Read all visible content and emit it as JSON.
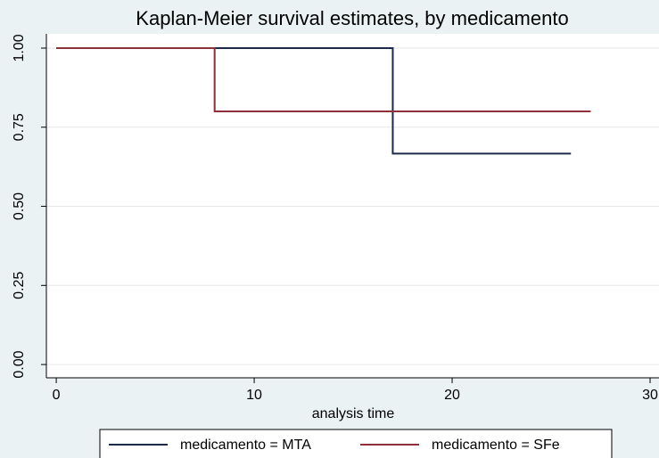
{
  "chart_data": {
    "type": "line",
    "step": "post",
    "title": "Kaplan-Meier survival estimates, by medicamento",
    "x_label": "analysis time",
    "series": [
      {
        "name": "medicamento = MTA",
        "color": "#1b2a48",
        "x": [
          0,
          17,
          26
        ],
        "values": [
          1,
          0.6667,
          0.6667
        ]
      },
      {
        "name": "medicamento = SFe",
        "color": "#8e2f3a",
        "x": [
          0,
          8,
          27
        ],
        "values": [
          1,
          0.8,
          0.8
        ]
      }
    ],
    "xlim": [
      -0.5,
      30.45
    ],
    "xticks": [
      0,
      10,
      20,
      30
    ],
    "ylim": [
      -0.042,
      1.045
    ],
    "yticks": [
      {
        "value": 0,
        "label": "0.00"
      },
      {
        "value": 0.25,
        "label": "0.25"
      },
      {
        "value": 0.5,
        "label": "0.50"
      },
      {
        "value": 0.75,
        "label": "0.75"
      },
      {
        "value": 1,
        "label": "1.00"
      }
    ],
    "grid": true,
    "legend": "bottom"
  }
}
